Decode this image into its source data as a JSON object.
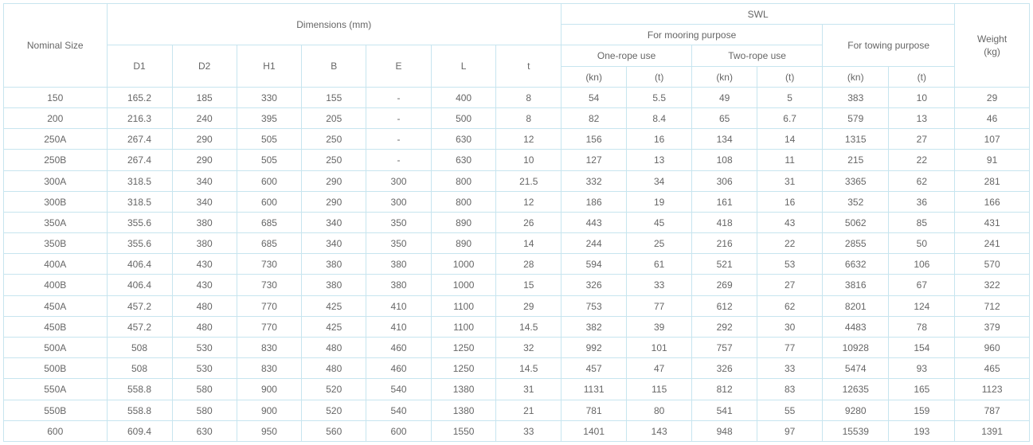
{
  "headers": {
    "nominal": "Nominal Size",
    "dimensions": "Dimensions (mm)",
    "swl": "SWL",
    "weight": "Weight",
    "weight_unit": "(kg)",
    "mooring": "For mooring purpose",
    "towing": "For towing purpose",
    "one_rope": "One-rope use",
    "two_rope": "Two-rope use",
    "d1": "D1",
    "d2": "D2",
    "h1": "H1",
    "b": "B",
    "e": "E",
    "l": "L",
    "t": "t",
    "kn": "(kn)",
    "tonne": "(t)"
  },
  "rows": [
    {
      "nominal": "150",
      "d1": "165.2",
      "d2": "185",
      "h1": "330",
      "b": "155",
      "e": "-",
      "l": "400",
      "t": "8",
      "one_kn": "54",
      "one_t": "5.5",
      "two_kn": "49",
      "two_t": "5",
      "tow_kn": "383",
      "tow_t": "10",
      "wt": "29"
    },
    {
      "nominal": "200",
      "d1": "216.3",
      "d2": "240",
      "h1": "395",
      "b": "205",
      "e": "-",
      "l": "500",
      "t": "8",
      "one_kn": "82",
      "one_t": "8.4",
      "two_kn": "65",
      "two_t": "6.7",
      "tow_kn": "579",
      "tow_t": "13",
      "wt": "46"
    },
    {
      "nominal": "250A",
      "d1": "267.4",
      "d2": "290",
      "h1": "505",
      "b": "250",
      "e": "-",
      "l": "630",
      "t": "12",
      "one_kn": "156",
      "one_t": "16",
      "two_kn": "134",
      "two_t": "14",
      "tow_kn": "1315",
      "tow_t": "27",
      "wt": "107"
    },
    {
      "nominal": "250B",
      "d1": "267.4",
      "d2": "290",
      "h1": "505",
      "b": "250",
      "e": "-",
      "l": "630",
      "t": "10",
      "one_kn": "127",
      "one_t": "13",
      "two_kn": "108",
      "two_t": "11",
      "tow_kn": "215",
      "tow_t": "22",
      "wt": "91"
    },
    {
      "nominal": "300A",
      "d1": "318.5",
      "d2": "340",
      "h1": "600",
      "b": "290",
      "e": "300",
      "l": "800",
      "t": "21.5",
      "one_kn": "332",
      "one_t": "34",
      "two_kn": "306",
      "two_t": "31",
      "tow_kn": "3365",
      "tow_t": "62",
      "wt": "281"
    },
    {
      "nominal": "300B",
      "d1": "318.5",
      "d2": "340",
      "h1": "600",
      "b": "290",
      "e": "300",
      "l": "800",
      "t": "12",
      "one_kn": "186",
      "one_t": "19",
      "two_kn": "161",
      "two_t": "16",
      "tow_kn": "352",
      "tow_t": "36",
      "wt": "166"
    },
    {
      "nominal": "350A",
      "d1": "355.6",
      "d2": "380",
      "h1": "685",
      "b": "340",
      "e": "350",
      "l": "890",
      "t": "26",
      "one_kn": "443",
      "one_t": "45",
      "two_kn": "418",
      "two_t": "43",
      "tow_kn": "5062",
      "tow_t": "85",
      "wt": "431"
    },
    {
      "nominal": "350B",
      "d1": "355.6",
      "d2": "380",
      "h1": "685",
      "b": "340",
      "e": "350",
      "l": "890",
      "t": "14",
      "one_kn": "244",
      "one_t": "25",
      "two_kn": "216",
      "two_t": "22",
      "tow_kn": "2855",
      "tow_t": "50",
      "wt": "241"
    },
    {
      "nominal": "400A",
      "d1": "406.4",
      "d2": "430",
      "h1": "730",
      "b": "380",
      "e": "380",
      "l": "1000",
      "t": "28",
      "one_kn": "594",
      "one_t": "61",
      "two_kn": "521",
      "two_t": "53",
      "tow_kn": "6632",
      "tow_t": "106",
      "wt": "570"
    },
    {
      "nominal": "400B",
      "d1": "406.4",
      "d2": "430",
      "h1": "730",
      "b": "380",
      "e": "380",
      "l": "1000",
      "t": "15",
      "one_kn": "326",
      "one_t": "33",
      "two_kn": "269",
      "two_t": "27",
      "tow_kn": "3816",
      "tow_t": "67",
      "wt": "322"
    },
    {
      "nominal": "450A",
      "d1": "457.2",
      "d2": "480",
      "h1": "770",
      "b": "425",
      "e": "410",
      "l": "1100",
      "t": "29",
      "one_kn": "753",
      "one_t": "77",
      "two_kn": "612",
      "two_t": "62",
      "tow_kn": "8201",
      "tow_t": "124",
      "wt": "712"
    },
    {
      "nominal": "450B",
      "d1": "457.2",
      "d2": "480",
      "h1": "770",
      "b": "425",
      "e": "410",
      "l": "1100",
      "t": "14.5",
      "one_kn": "382",
      "one_t": "39",
      "two_kn": "292",
      "two_t": "30",
      "tow_kn": "4483",
      "tow_t": "78",
      "wt": "379"
    },
    {
      "nominal": "500A",
      "d1": "508",
      "d2": "530",
      "h1": "830",
      "b": "480",
      "e": "460",
      "l": "1250",
      "t": "32",
      "one_kn": "992",
      "one_t": "101",
      "two_kn": "757",
      "two_t": "77",
      "tow_kn": "10928",
      "tow_t": "154",
      "wt": "960"
    },
    {
      "nominal": "500B",
      "d1": "508",
      "d2": "530",
      "h1": "830",
      "b": "480",
      "e": "460",
      "l": "1250",
      "t": "14.5",
      "one_kn": "457",
      "one_t": "47",
      "two_kn": "326",
      "two_t": "33",
      "tow_kn": "5474",
      "tow_t": "93",
      "wt": "465"
    },
    {
      "nominal": "550A",
      "d1": "558.8",
      "d2": "580",
      "h1": "900",
      "b": "520",
      "e": "540",
      "l": "1380",
      "t": "31",
      "one_kn": "1131",
      "one_t": "115",
      "two_kn": "812",
      "two_t": "83",
      "tow_kn": "12635",
      "tow_t": "165",
      "wt": "1123"
    },
    {
      "nominal": "550B",
      "d1": "558.8",
      "d2": "580",
      "h1": "900",
      "b": "520",
      "e": "540",
      "l": "1380",
      "t": "21",
      "one_kn": "781",
      "one_t": "80",
      "two_kn": "541",
      "two_t": "55",
      "tow_kn": "9280",
      "tow_t": "159",
      "wt": "787"
    },
    {
      "nominal": "600",
      "d1": "609.4",
      "d2": "630",
      "h1": "950",
      "b": "560",
      "e": "600",
      "l": "1550",
      "t": "33",
      "one_kn": "1401",
      "one_t": "143",
      "two_kn": "948",
      "two_t": "97",
      "tow_kn": "15539",
      "tow_t": "193",
      "wt": "1391"
    }
  ]
}
